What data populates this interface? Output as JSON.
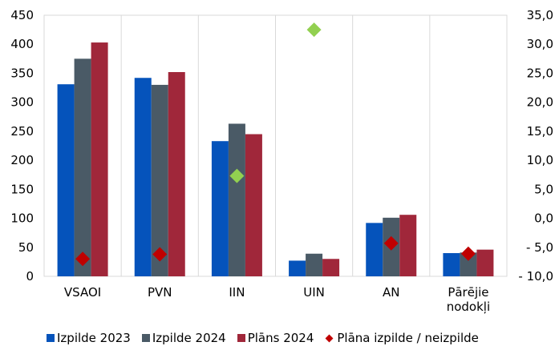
{
  "chart_data": {
    "type": "bar",
    "categories": [
      [
        "VSAOI"
      ],
      [
        "PVN"
      ],
      [
        "IIN"
      ],
      [
        "UIN"
      ],
      [
        "AN"
      ],
      [
        "Pārējie",
        "nodokļi"
      ]
    ],
    "series": [
      {
        "name": "Izpilde 2023",
        "color": "#0553BB",
        "axis": "left",
        "values": [
          331,
          342,
          233,
          27,
          92,
          40
        ]
      },
      {
        "name": "Izpilde 2024",
        "color": "#4A5A66",
        "axis": "left",
        "values": [
          375,
          330,
          263,
          39,
          101,
          41
        ]
      },
      {
        "name": "Plāns 2024",
        "color": "#A0273A",
        "axis": "left",
        "values": [
          403,
          352,
          245,
          30,
          106,
          46
        ]
      },
      {
        "name": "Plāna izpilde / neizpilde",
        "type": "scatter",
        "marker": "diamond",
        "axis": "right",
        "colors": [
          "#C00000",
          "#C00000",
          "#92D050",
          "#92D050",
          "#C00000",
          "#C00000"
        ],
        "values": [
          -7.0,
          -6.2,
          7.3,
          32.5,
          -4.3,
          -6.1
        ]
      }
    ],
    "y_left": {
      "ylim": [
        0,
        450
      ],
      "ticks": [
        "0",
        "50",
        "100",
        "150",
        "200",
        "250",
        "300",
        "350",
        "400",
        "450"
      ]
    },
    "y_right": {
      "ylim": [
        -10,
        35
      ],
      "ticks": [
        "- 10,0",
        "- 5,0",
        "0,0",
        "5,0",
        "10,0",
        "15,0",
        "20,0",
        "25,0",
        "30,0",
        "35,0"
      ]
    },
    "grid": "vertical separators between categories",
    "legend_position": "bottom"
  }
}
